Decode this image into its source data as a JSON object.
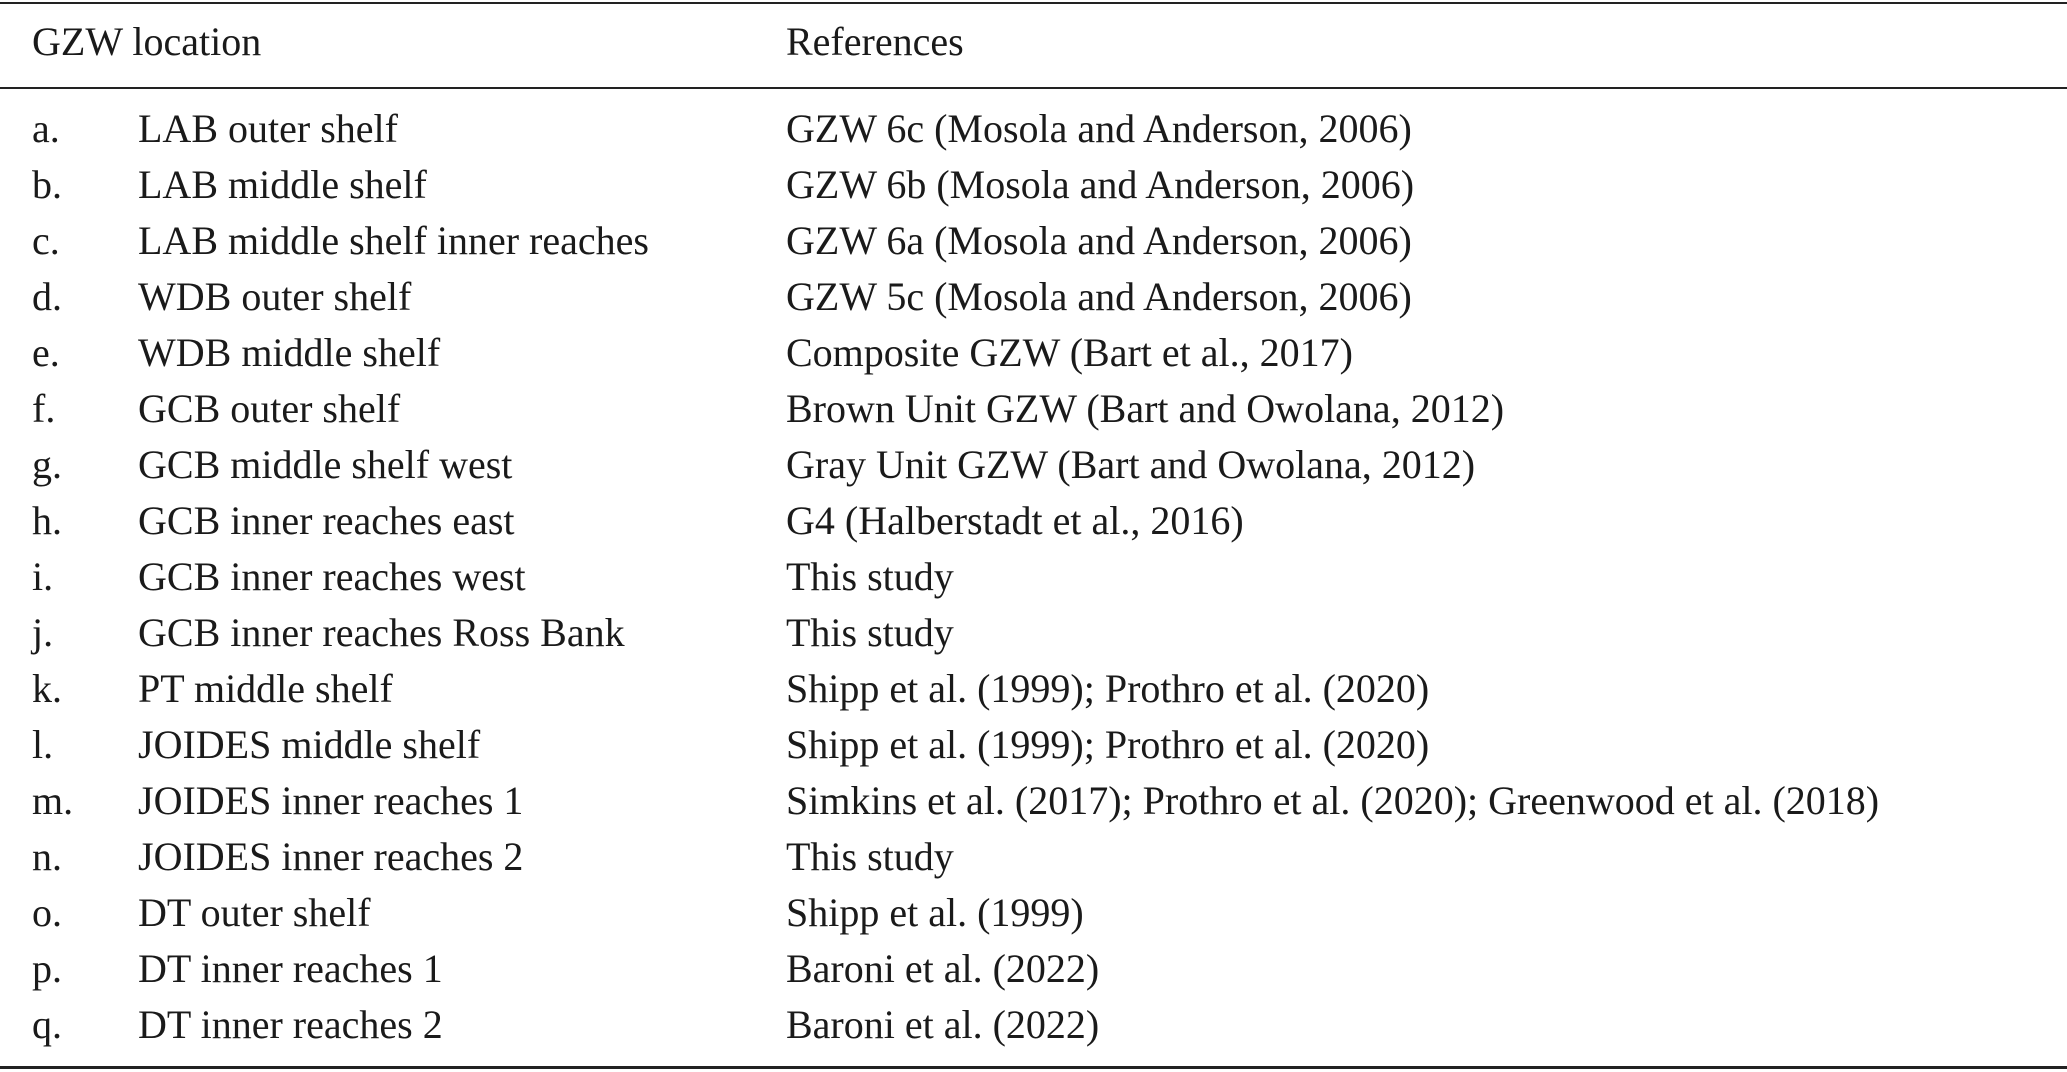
{
  "table": {
    "headers": {
      "location": "GZW location",
      "references": "References"
    },
    "rows": [
      {
        "letter": "a.",
        "location": "LAB outer shelf",
        "reference": "GZW 6c (Mosola and Anderson, 2006)"
      },
      {
        "letter": "b.",
        "location": "LAB middle shelf",
        "reference": "GZW 6b (Mosola and Anderson, 2006)"
      },
      {
        "letter": "c.",
        "location": "LAB middle shelf inner reaches",
        "reference": "GZW 6a (Mosola and Anderson, 2006)"
      },
      {
        "letter": "d.",
        "location": "WDB outer shelf",
        "reference": "GZW 5c (Mosola and Anderson, 2006)"
      },
      {
        "letter": "e.",
        "location": "WDB middle shelf",
        "reference": "Composite GZW (Bart et al., 2017)"
      },
      {
        "letter": "f.",
        "location": "GCB outer shelf",
        "reference": "Brown Unit GZW (Bart and Owolana, 2012)"
      },
      {
        "letter": "g.",
        "location": "GCB middle shelf west",
        "reference": "Gray Unit GZW (Bart and Owolana, 2012)"
      },
      {
        "letter": "h.",
        "location": "GCB inner reaches east",
        "reference": "G4 (Halberstadt et al., 2016)"
      },
      {
        "letter": "i.",
        "location": "GCB inner reaches west",
        "reference": "This study"
      },
      {
        "letter": "j.",
        "location": "GCB inner reaches Ross Bank",
        "reference": "This study"
      },
      {
        "letter": "k.",
        "location": "PT middle shelf",
        "reference": "Shipp et al. (1999); Prothro et al. (2020)"
      },
      {
        "letter": "l.",
        "location": "JOIDES middle shelf",
        "reference": "Shipp et al. (1999); Prothro et al. (2020)"
      },
      {
        "letter": "m.",
        "location": "JOIDES inner reaches 1",
        "reference": "Simkins et al. (2017); Prothro et al. (2020); Greenwood et al. (2018)"
      },
      {
        "letter": "n.",
        "location": "JOIDES inner reaches 2",
        "reference": "This study"
      },
      {
        "letter": "o.",
        "location": "DT outer shelf",
        "reference": "Shipp et al. (1999)"
      },
      {
        "letter": "p.",
        "location": "DT inner reaches 1",
        "reference": "Baroni et al. (2022)"
      },
      {
        "letter": "q.",
        "location": "DT inner reaches 2",
        "reference": "Baroni et al. (2022)"
      }
    ]
  }
}
